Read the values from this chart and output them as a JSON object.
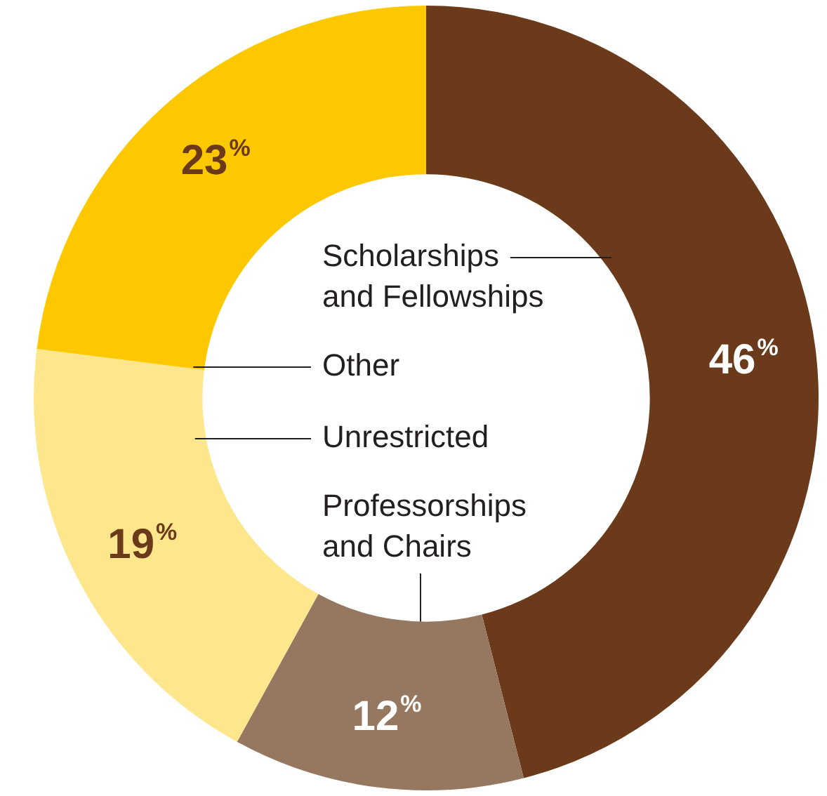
{
  "chart_data": {
    "type": "donut",
    "categories": [
      "Scholarships and Fellowships",
      "Professorships and Chairs",
      "Unrestricted",
      "Other"
    ],
    "values": [
      46,
      12,
      19,
      23
    ],
    "colors": [
      "#6b3a1a",
      "#967860",
      "#fde68c",
      "#fdc800"
    ],
    "value_labels": [
      "46%",
      "12%",
      "19%",
      "23%"
    ],
    "legend": false
  }
}
